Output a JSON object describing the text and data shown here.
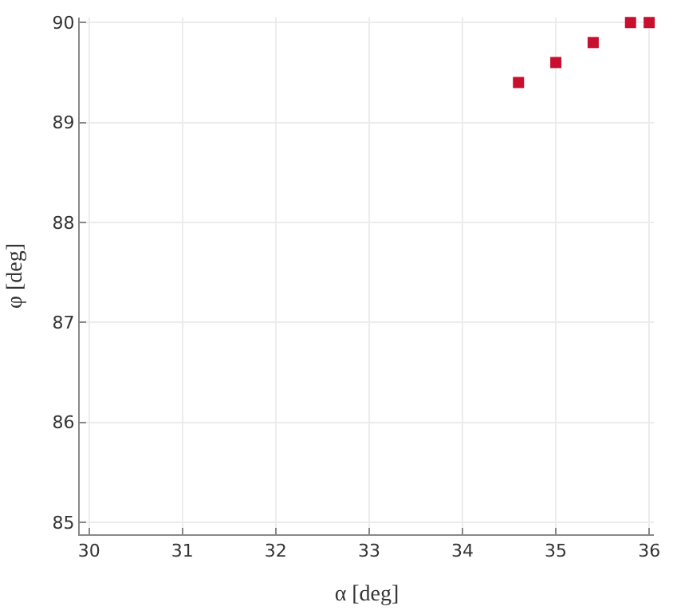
{
  "chart_data": {
    "type": "scatter",
    "xlabel": "α [deg]",
    "ylabel": "φ [deg]",
    "x": [
      34.6,
      35,
      35.4,
      35.8,
      36
    ],
    "series": [
      {
        "color": "#c8102e",
        "values": [
          89.4,
          89.6,
          89.8,
          90,
          90
        ]
      }
    ],
    "xlim": [
      29.9,
      36.05
    ],
    "ylim": [
      84.88,
      90.05
    ],
    "xticks": [
      30,
      31,
      32,
      33,
      34,
      35,
      36
    ],
    "yticks": [
      85,
      86,
      87,
      88,
      89,
      90
    ],
    "grid": true,
    "marker": "square"
  }
}
